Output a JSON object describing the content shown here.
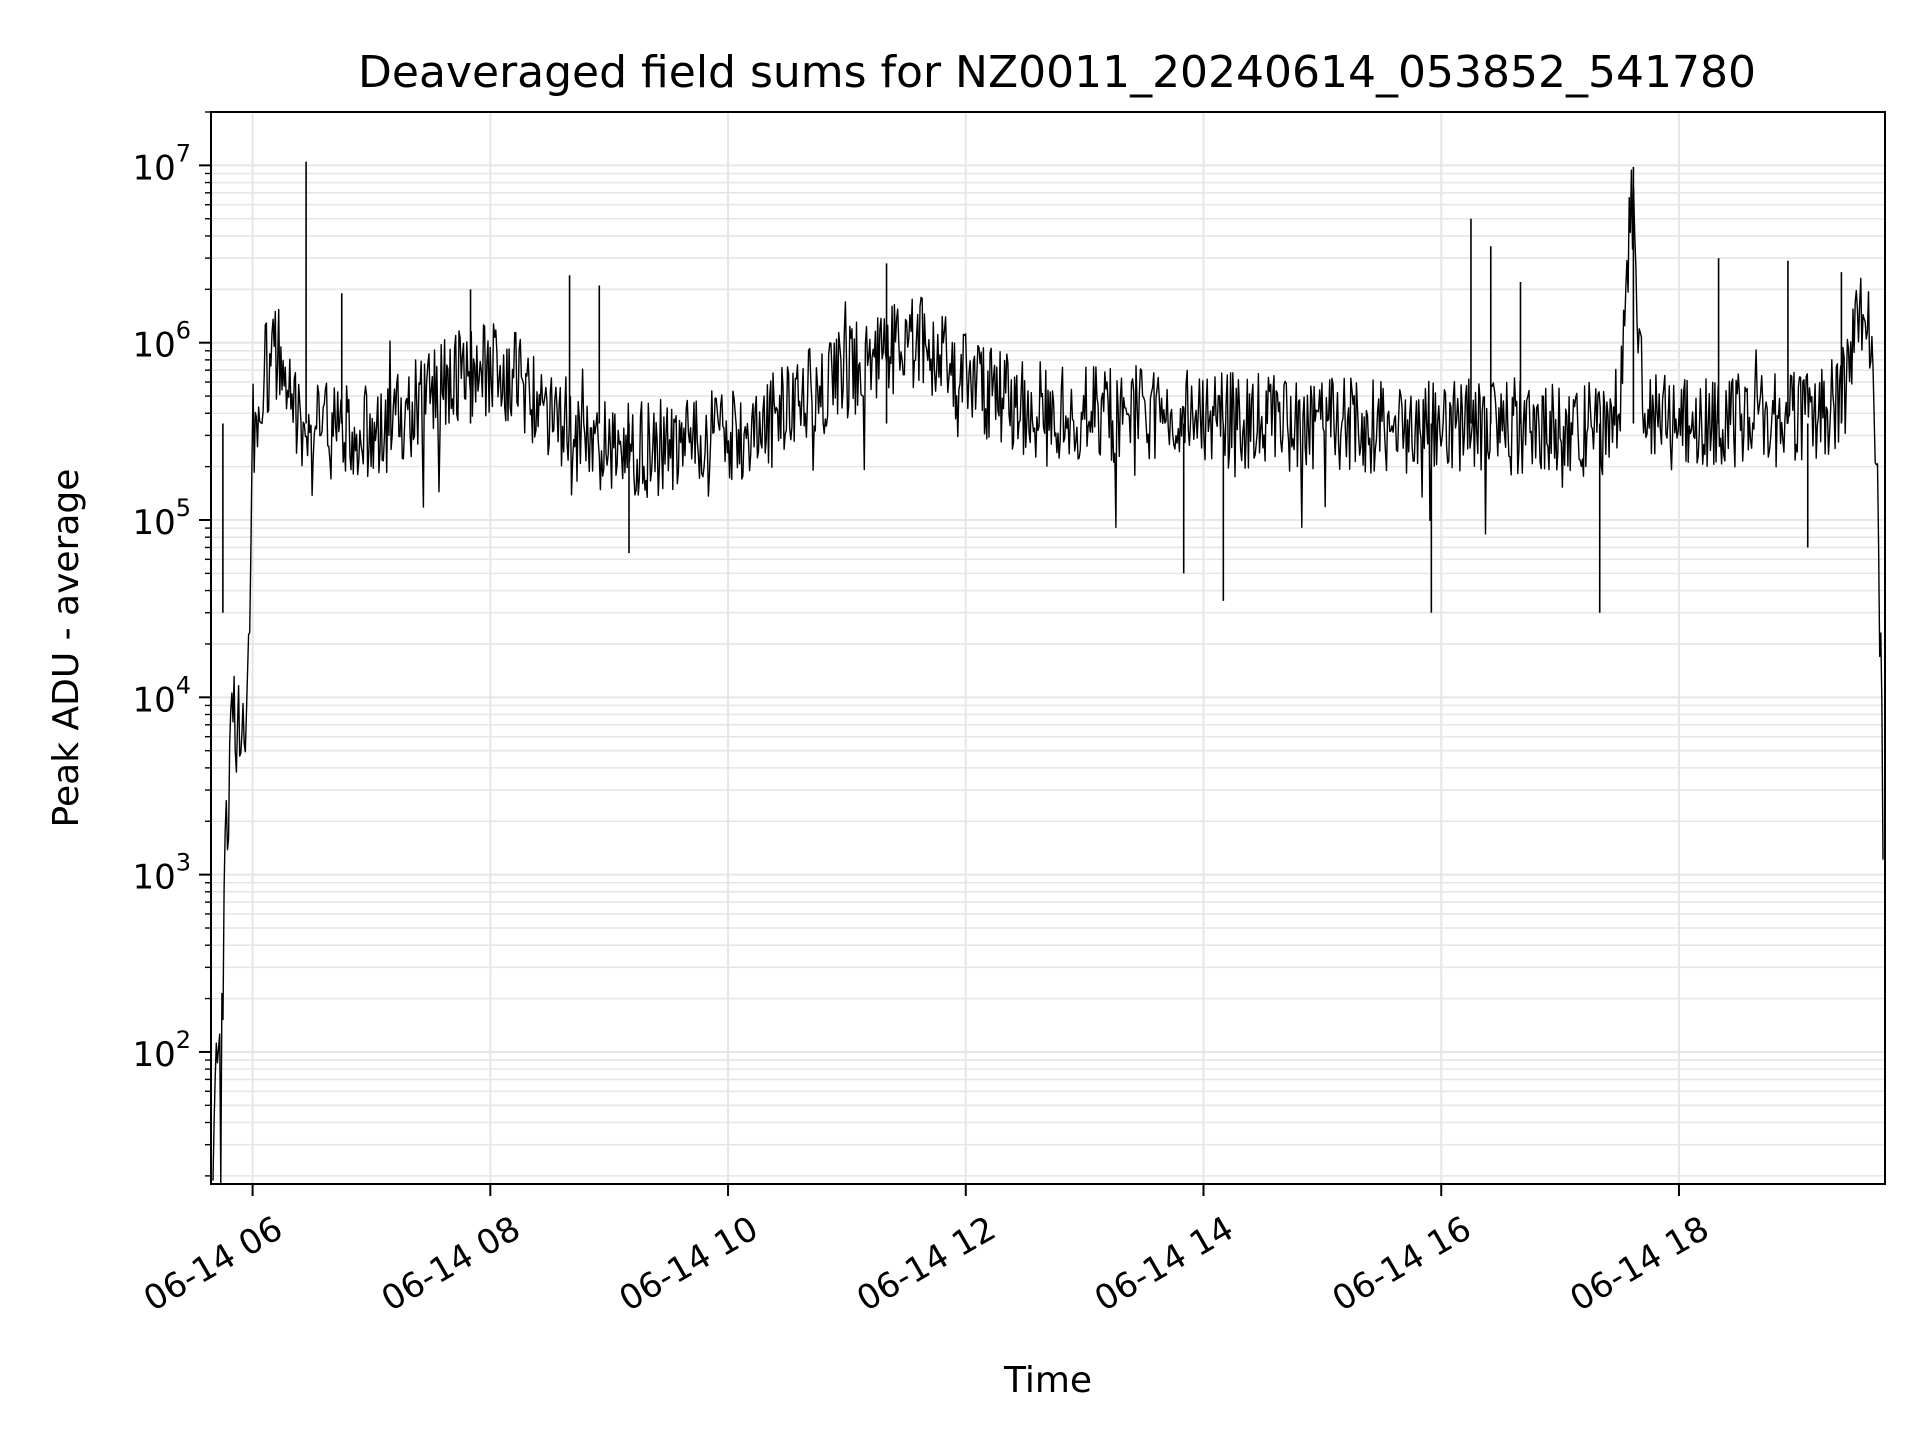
{
  "chart_data": {
    "type": "line",
    "title": "Deaveraged field sums for NZ0011_20240614_053852_541780",
    "xlabel": "Time",
    "ylabel": "Peak ADU - average",
    "yscale": "log",
    "ylim": [
      18,
      20000000
    ],
    "xlim": [
      "2024-06-14 05:39",
      "2024-06-14 19:44"
    ],
    "grid": true,
    "x_ticks": [
      {
        "value": "2024-06-14 06:00",
        "label": "06-14 06"
      },
      {
        "value": "2024-06-14 08:00",
        "label": "06-14 08"
      },
      {
        "value": "2024-06-14 10:00",
        "label": "06-14 10"
      },
      {
        "value": "2024-06-14 12:00",
        "label": "06-14 12"
      },
      {
        "value": "2024-06-14 14:00",
        "label": "06-14 14"
      },
      {
        "value": "2024-06-14 16:00",
        "label": "06-14 16"
      },
      {
        "value": "2024-06-14 18:00",
        "label": "06-14 18"
      }
    ],
    "y_ticks": [
      {
        "value": 100,
        "base": "10",
        "exp": "2"
      },
      {
        "value": 1000,
        "base": "10",
        "exp": "3"
      },
      {
        "value": 10000,
        "base": "10",
        "exp": "4"
      },
      {
        "value": 100000,
        "base": "10",
        "exp": "5"
      },
      {
        "value": 1000000,
        "base": "10",
        "exp": "6"
      },
      {
        "value": 10000000,
        "base": "10",
        "exp": "7"
      }
    ],
    "line_color": "#000000",
    "series": [
      {
        "x": [
          "2024-06-14 05:40",
          "2024-06-14 05:42",
          "2024-06-14 05:44",
          "2024-06-14 05:46",
          "2024-06-14 05:48",
          "2024-06-14 05:50",
          "2024-06-14 05:52",
          "2024-06-14 05:54",
          "2024-06-14 05:56",
          "2024-06-14 05:58",
          "2024-06-14 06:00",
          "2024-06-14 06:05",
          "2024-06-14 06:10",
          "2024-06-14 06:15",
          "2024-06-14 06:20",
          "2024-06-14 06:30",
          "2024-06-14 06:45",
          "2024-06-14 07:00",
          "2024-06-14 07:15",
          "2024-06-14 07:30",
          "2024-06-14 07:45",
          "2024-06-14 08:00",
          "2024-06-14 08:15",
          "2024-06-14 08:30",
          "2024-06-14 08:45",
          "2024-06-14 09:00",
          "2024-06-14 09:15",
          "2024-06-14 09:30",
          "2024-06-14 09:45",
          "2024-06-14 10:00",
          "2024-06-14 10:15",
          "2024-06-14 10:30",
          "2024-06-14 10:45",
          "2024-06-14 11:00",
          "2024-06-14 11:15",
          "2024-06-14 11:30",
          "2024-06-14 11:40",
          "2024-06-14 11:50",
          "2024-06-14 12:00",
          "2024-06-14 12:15",
          "2024-06-14 12:30",
          "2024-06-14 13:00",
          "2024-06-14 13:30",
          "2024-06-14 14:00",
          "2024-06-14 14:30",
          "2024-06-14 15:00",
          "2024-06-14 15:30",
          "2024-06-14 16:00",
          "2024-06-14 16:30",
          "2024-06-14 17:00",
          "2024-06-14 17:20",
          "2024-06-14 17:30",
          "2024-06-14 17:36",
          "2024-06-14 17:42",
          "2024-06-14 17:50",
          "2024-06-14 18:00",
          "2024-06-14 18:30",
          "2024-06-14 19:00",
          "2024-06-14 19:15",
          "2024-06-14 19:25",
          "2024-06-14 19:30",
          "2024-06-14 19:35",
          "2024-06-14 19:38",
          "2024-06-14 19:41",
          "2024-06-14 19:43"
        ],
        "y": [
          18,
          150,
          60,
          1000,
          3000,
          8000,
          6000,
          9000,
          5000,
          20000,
          300000,
          600000,
          900000,
          800000,
          400000,
          350000,
          300000,
          320000,
          380000,
          500000,
          650000,
          700000,
          600000,
          400000,
          300000,
          260000,
          250000,
          260000,
          280000,
          300000,
          330000,
          400000,
          550000,
          650000,
          800000,
          1000000,
          950000,
          800000,
          600000,
          500000,
          420000,
          400000,
          380000,
          370000,
          360000,
          350000,
          340000,
          350000,
          340000,
          330000,
          330000,
          400000,
          7000000,
          500000,
          360000,
          350000,
          360000,
          380000,
          400000,
          600000,
          1500000,
          1300000,
          500000,
          100000,
          2000
        ]
      }
    ],
    "spikes": [
      {
        "x": "2024-06-14 05:45",
        "y": 30000
      },
      {
        "x": "2024-06-14 06:27",
        "y": 10500000
      },
      {
        "x": "2024-06-14 06:45",
        "y": 1900000
      },
      {
        "x": "2024-06-14 07:50",
        "y": 2000000
      },
      {
        "x": "2024-06-14 08:40",
        "y": 2400000
      },
      {
        "x": "2024-06-14 08:55",
        "y": 2100000
      },
      {
        "x": "2024-06-14 09:10",
        "y": 65000
      },
      {
        "x": "2024-06-14 11:20",
        "y": 2800000
      },
      {
        "x": "2024-06-14 13:50",
        "y": 50000
      },
      {
        "x": "2024-06-14 14:10",
        "y": 35000
      },
      {
        "x": "2024-06-14 15:55",
        "y": 30000
      },
      {
        "x": "2024-06-14 16:15",
        "y": 5000000
      },
      {
        "x": "2024-06-14 16:25",
        "y": 3500000
      },
      {
        "x": "2024-06-14 16:40",
        "y": 2200000
      },
      {
        "x": "2024-06-14 17:20",
        "y": 30000
      },
      {
        "x": "2024-06-14 17:37",
        "y": 9800000
      },
      {
        "x": "2024-06-14 18:20",
        "y": 3000000
      },
      {
        "x": "2024-06-14 18:55",
        "y": 2900000
      },
      {
        "x": "2024-06-14 19:05",
        "y": 70000
      },
      {
        "x": "2024-06-14 19:22",
        "y": 2500000
      }
    ]
  }
}
